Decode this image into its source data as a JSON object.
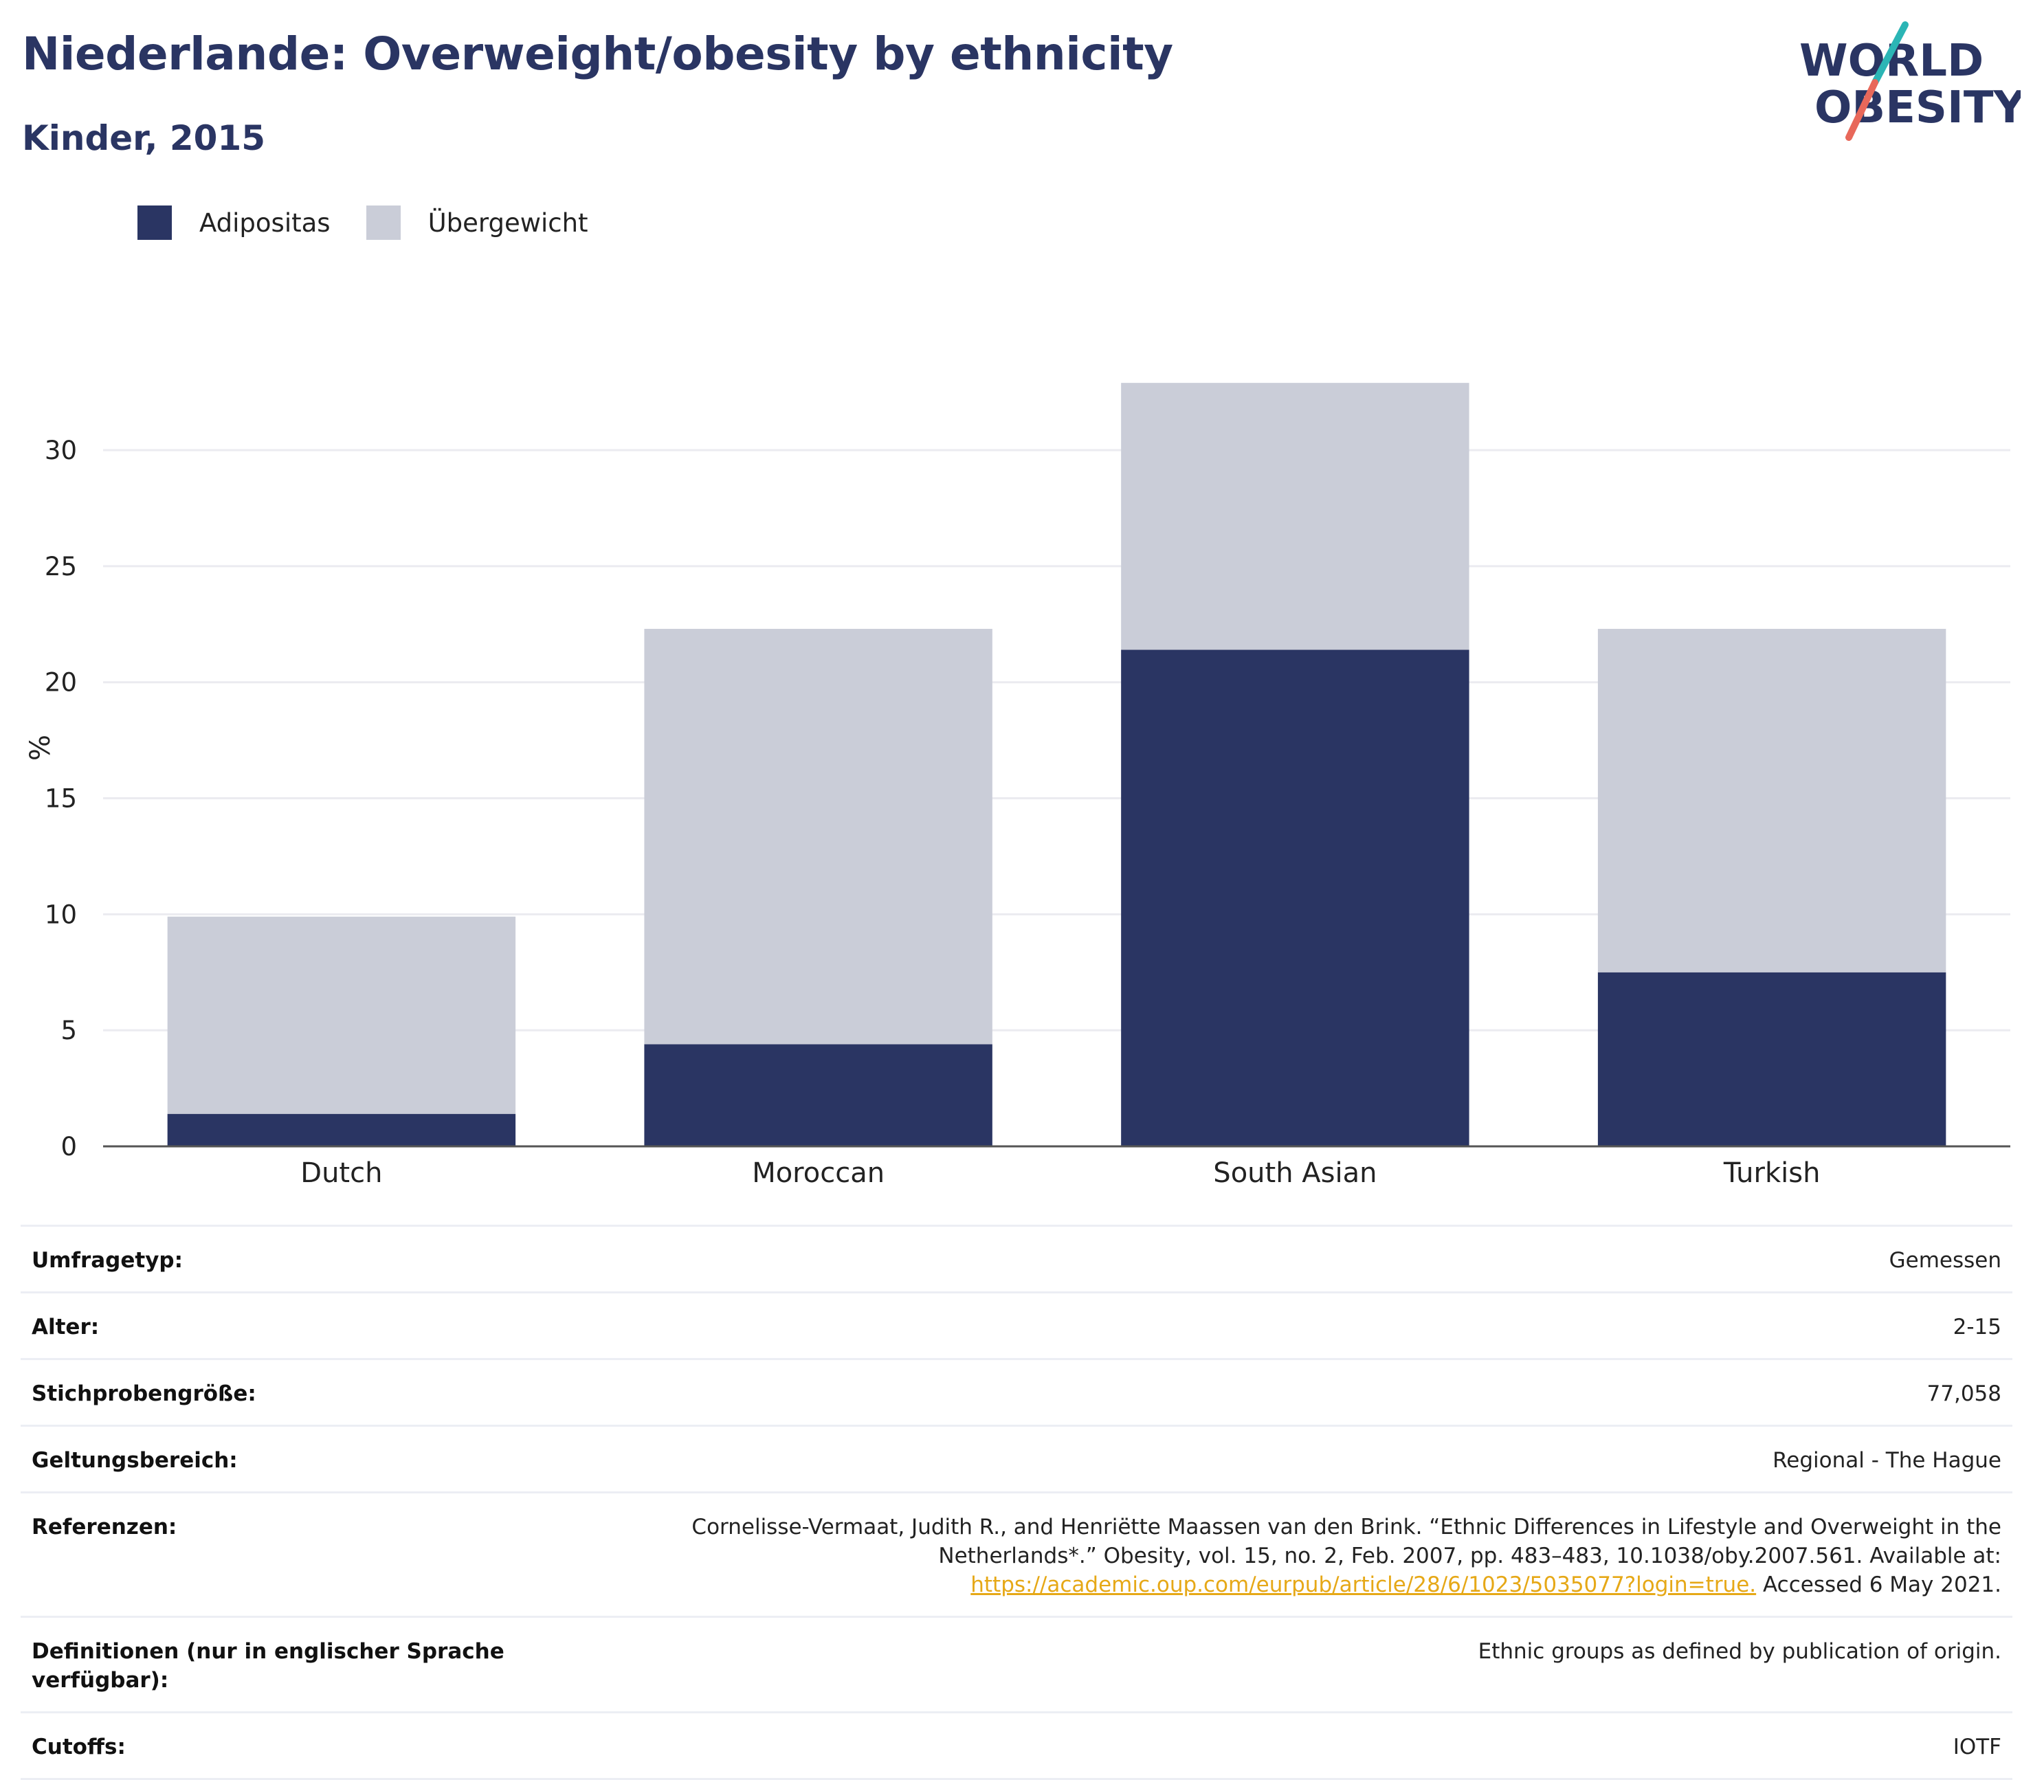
{
  "header": {
    "title": "Niederlande: Overweight/obesity by ethnicity",
    "subtitle": "Kinder, 2015"
  },
  "logo": {
    "line1": "WORLD",
    "line2": "OBESITY",
    "colors": {
      "text": "#2a3563",
      "slash_top": "#2bb5b5",
      "slash_bottom": "#e8685a"
    }
  },
  "legend": [
    {
      "label": "Adipositas",
      "color": "#2a3563"
    },
    {
      "label": "Übergewicht",
      "color": "#cacdd8"
    }
  ],
  "chart_data": {
    "type": "bar",
    "stacked": true,
    "categories": [
      "Dutch",
      "Moroccan",
      "South Asian",
      "Turkish"
    ],
    "series": [
      {
        "name": "Adipositas",
        "color": "#2a3563",
        "values": [
          1.4,
          4.4,
          21.4,
          7.5
        ]
      },
      {
        "name": "Übergewicht",
        "color": "#cacdd8",
        "values": [
          8.5,
          17.9,
          11.5,
          14.8
        ]
      }
    ],
    "ylabel": "%",
    "xlabel": "",
    "ylim": [
      0,
      34
    ],
    "yticks": [
      0,
      5,
      10,
      15,
      20,
      25,
      30
    ],
    "grid": true,
    "legend_position": "top-left"
  },
  "meta": {
    "rows": [
      {
        "key": "Umfragetyp:",
        "value": "Gemessen"
      },
      {
        "key": "Alter:",
        "value": "2-15"
      },
      {
        "key": "Stichprobengröße:",
        "value": "77,058"
      },
      {
        "key": "Geltungsbereich:",
        "value": "Regional - The Hague"
      }
    ],
    "references": {
      "key": "Referenzen:",
      "text_before": "Cornelisse-Vermaat, Judith R., and Henriëtte Maassen van den Brink. “Ethnic Differences in Lifestyle and Overweight in the Netherlands*.” Obesity, vol. 15, no. 2, Feb. 2007, pp. 483–483, 10.1038/oby.2007.561. Available at: ",
      "link": "https://academic.oup.com/eurpub/article/28/6/1023/5035077?login=true.",
      "text_after": " Accessed 6 May 2021."
    },
    "rows_after": [
      {
        "key": "Definitionen (nur in englischer Sprache verfügbar):",
        "value": "Ethnic groups as defined by publication of origin."
      },
      {
        "key": "Cutoffs:",
        "value": "IOTF"
      }
    ]
  }
}
